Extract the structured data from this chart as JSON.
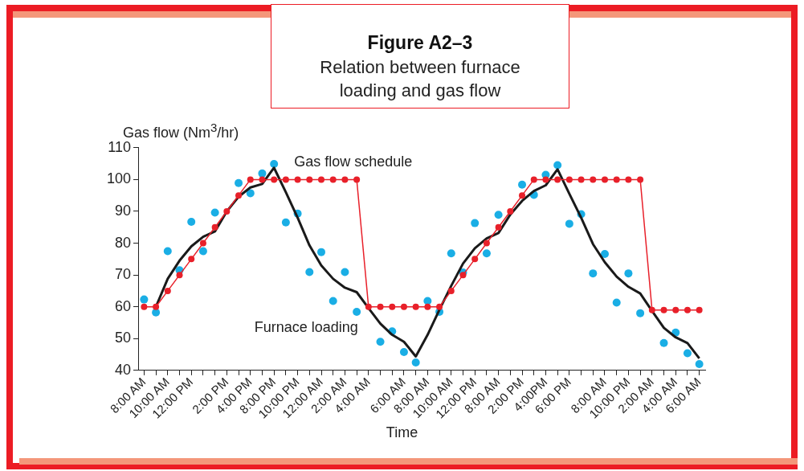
{
  "chart_data": {
    "type": "line",
    "title": "Figure A2–3",
    "subtitle": "Relation between furnace loading and gas flow",
    "xlabel": "Time",
    "ylabel": "Gas flow (Nm$^{3}$/hr)",
    "categories": [
      "8:00 AM",
      null,
      "10:00 AM",
      null,
      "12:00 PM",
      null,
      null,
      "2:00 PM",
      null,
      "4:00 PM",
      null,
      "8:00 PM",
      null,
      "10:00 PM",
      null,
      "12:00 AM",
      null,
      "2:00 AM",
      null,
      "4:00 AM",
      null,
      null,
      "6:00 AM",
      null,
      "8:00 AM",
      null,
      "10:00 AM",
      null,
      "12:00 PM",
      null,
      "8:00 AM",
      null,
      "2:00 PM",
      null,
      "4:00PM",
      null,
      "6:00 PM",
      null,
      null,
      "8:00 AM",
      null,
      "10:00 PM",
      null,
      "2:00 AM",
      null,
      "4:00 AM",
      null,
      "6:00 AM"
    ],
    "series": [
      {
        "name": "Gas flow schedule",
        "type": "line",
        "marker": "circle",
        "color": "#e8202a",
        "values": [
          60,
          60,
          65,
          70,
          75,
          80,
          85,
          90,
          95,
          100,
          100,
          100,
          100,
          100,
          100,
          100,
          100,
          100,
          100,
          60,
          60,
          60,
          60,
          60,
          60,
          60,
          65,
          70,
          75,
          80,
          85,
          90,
          95,
          100,
          100,
          100,
          100,
          100,
          100,
          100,
          100,
          100,
          100,
          59,
          59,
          59,
          59,
          59
        ]
      },
      {
        "name": "Furnace loading",
        "type": "line",
        "marker": "none",
        "color": "#1a1a1a",
        "values": [
          null,
          60,
          68.8,
          74.5,
          79,
          82,
          83.7,
          90,
          94.6,
          97.5,
          98.6,
          103.7,
          96,
          88,
          79.3,
          73,
          68.8,
          66,
          64.6,
          59.6,
          54.7,
          51.2,
          49,
          44.4,
          51.2,
          59.1,
          66.6,
          73.6,
          78.4,
          81.5,
          83.2,
          89,
          93.3,
          96.4,
          98.2,
          103.2,
          95.5,
          88,
          79.7,
          74,
          69.5,
          66.3,
          64.2,
          58.7,
          53.4,
          50.4,
          48.6,
          43.8
        ]
      },
      {
        "type": "scatter",
        "marker": "circle",
        "color": "#1aaee5",
        "values": [
          62.3,
          58.2,
          77.5,
          71.5,
          86.7,
          77.5,
          89.6,
          null,
          98.9,
          95.7,
          101.9,
          104.9,
          86.5,
          89.3,
          70.9,
          77.2,
          61.8,
          70.9,
          58.4,
          null,
          49,
          52.3,
          45.8,
          42.5,
          61.8,
          58.4,
          76.8,
          70.8,
          86.3,
          76.8,
          88.9,
          null,
          98.4,
          95.2,
          101.5,
          104.5,
          86.1,
          89.1,
          70.5,
          76.6,
          61.3,
          70.5,
          58,
          null,
          48.6,
          51.9,
          45.4,
          42
        ]
      }
    ],
    "ylim": [
      40,
      110
    ],
    "yticks": [
      40,
      50,
      60,
      70,
      80,
      90,
      100,
      110
    ],
    "grid": false,
    "legend": false
  }
}
